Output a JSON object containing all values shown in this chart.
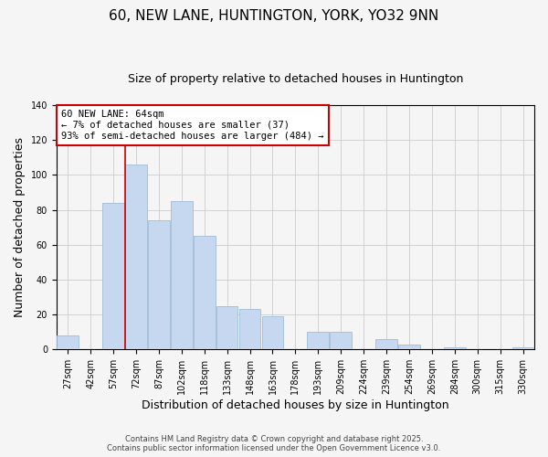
{
  "title": "60, NEW LANE, HUNTINGTON, YORK, YO32 9NN",
  "subtitle": "Size of property relative to detached houses in Huntington",
  "xlabel": "Distribution of detached houses by size in Huntington",
  "ylabel": "Number of detached properties",
  "bar_labels": [
    "27sqm",
    "42sqm",
    "57sqm",
    "72sqm",
    "87sqm",
    "102sqm",
    "118sqm",
    "133sqm",
    "148sqm",
    "163sqm",
    "178sqm",
    "193sqm",
    "209sqm",
    "224sqm",
    "239sqm",
    "254sqm",
    "269sqm",
    "284sqm",
    "300sqm",
    "315sqm",
    "330sqm"
  ],
  "bar_values": [
    8,
    0,
    84,
    106,
    74,
    85,
    65,
    25,
    23,
    19,
    0,
    10,
    10,
    0,
    6,
    3,
    0,
    1,
    0,
    0,
    1
  ],
  "bar_color": "#c5d8f0",
  "bar_edge_color": "#a0bcd8",
  "vline_x_idx": 2,
  "vline_color": "#cc0000",
  "annotation_title": "60 NEW LANE: 64sqm",
  "annotation_line1": "← 7% of detached houses are smaller (37)",
  "annotation_line2": "93% of semi-detached houses are larger (484) →",
  "annotation_box_color": "#ffffff",
  "annotation_box_edge": "#cc0000",
  "footer1": "Contains HM Land Registry data © Crown copyright and database right 2025.",
  "footer2": "Contains public sector information licensed under the Open Government Licence v3.0.",
  "ylim": [
    0,
    140
  ],
  "title_fontsize": 11,
  "subtitle_fontsize": 9,
  "xlabel_fontsize": 9,
  "ylabel_fontsize": 9,
  "tick_fontsize": 7,
  "annotation_fontsize": 7.5,
  "footer_fontsize": 6,
  "background_color": "#f5f5f5",
  "grid_color": "#cccccc"
}
